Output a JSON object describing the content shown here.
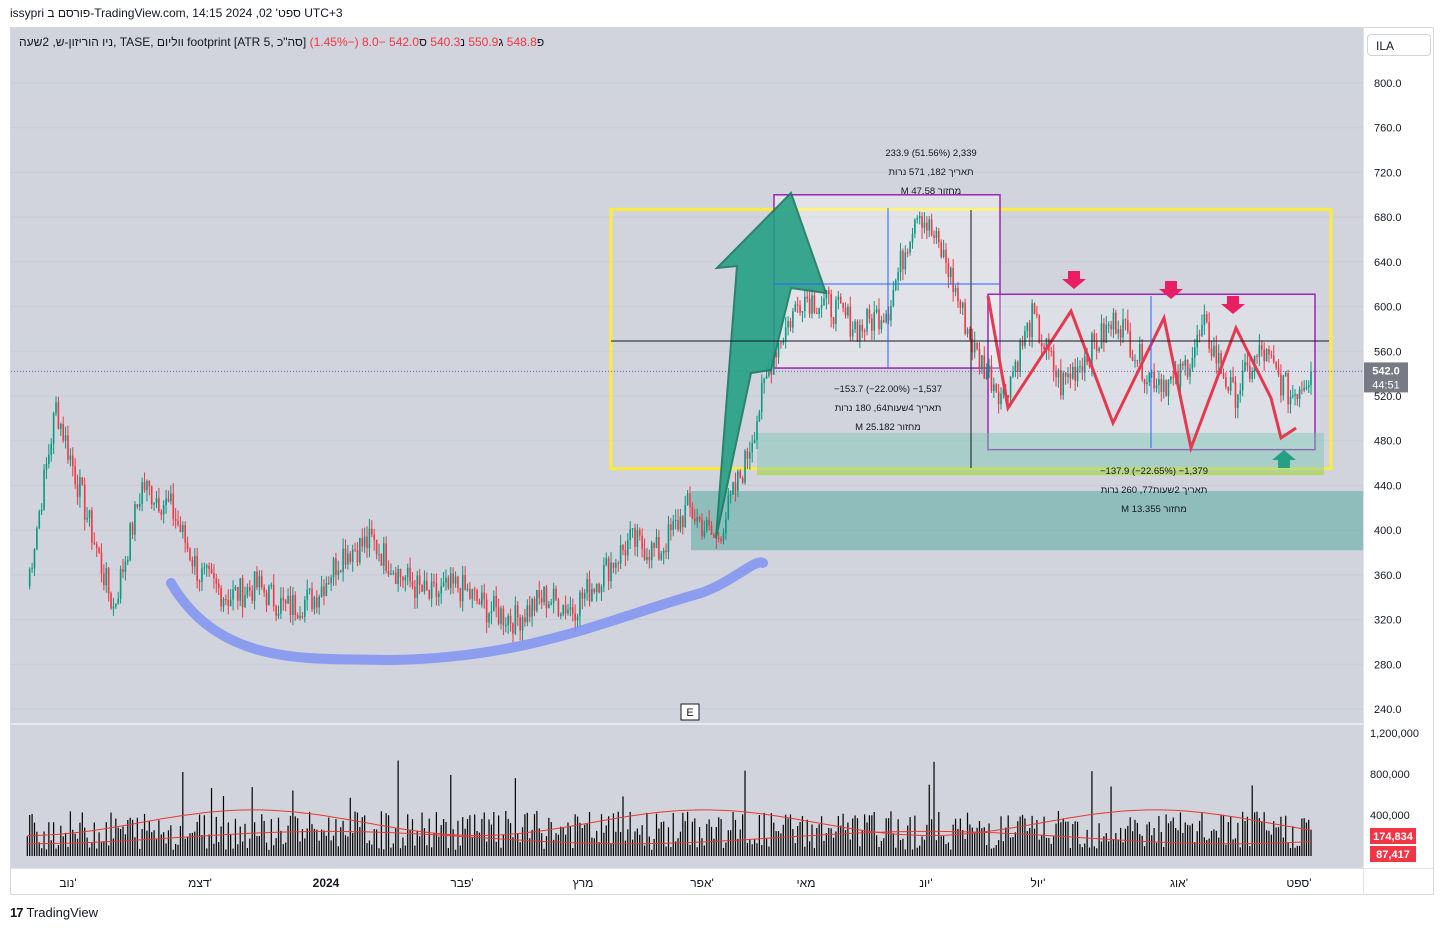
{
  "header": {
    "title": "issypri פורסם ב-TradingView.com, 14:15 2024 ,02 'ספט UTC+3"
  },
  "legend": {
    "symbol_text": "ניו הוריזון-ש, 2שעה, TASE, ווליום footprint [ATR 5, סה\"כ]",
    "open_label": "פ",
    "open": "548.8",
    "high_label": "ג",
    "high": "550.9",
    "low_label": "נ",
    "low": "540.3",
    "close_label": "ס",
    "close": "542.0",
    "change": "−8.0 (−1.45%)"
  },
  "symbol_search": "ILA",
  "price_axis": {
    "ticks": [
      "800.0",
      "760.0",
      "720.0",
      "680.0",
      "640.0",
      "600.0",
      "560.0",
      "520.0",
      "480.0",
      "440.0",
      "400.0",
      "360.0",
      "320.0",
      "280.0",
      "240.0"
    ],
    "current_price": "542.0",
    "countdown": "44:51"
  },
  "volume_axis": {
    "ticks": [
      "1,200,000",
      "800,000",
      "400,000"
    ],
    "badge_upper": "174,834",
    "badge_lower": "87,417"
  },
  "time_axis": {
    "labels": [
      "נוב'",
      "דצמ'",
      "2024",
      "פבר'",
      "מרץ",
      "אפר'",
      "מאי",
      "יונ'",
      "יול'",
      "אוג'",
      "ספט'"
    ]
  },
  "annotations": {
    "top_measure": [
      "233.9 (51.56%) 2,339",
      "תאריך 182, 571 נרות",
      "M מחזור 47.58"
    ],
    "mid_measure": [
      "−153.7 (−22.00%) −1,537",
      "תאריך 4שעות64, 180 נרות",
      "M מחזור 25.182"
    ],
    "low_measure": [
      "−137.9 (−22.65%) −1,379",
      "תאריך 2שעות77, 260 נרות",
      "M מחזור 13.355"
    ],
    "earnings_marker": "E"
  },
  "footer": {
    "brand": "TradingView"
  },
  "colors": {
    "up": "#089981",
    "down": "#f23645",
    "yellow_box": "#ffeb3b",
    "purple_box": "#9c27b0",
    "teal_zone": "#5cb8a6",
    "blue_curve": "#7b8ff5",
    "green_arrow": "#26a085"
  },
  "chart_data": {
    "type": "candlestick",
    "title": "ניו הוריזון-ש, 2שעה, TASE",
    "xlabel": "",
    "ylabel": "",
    "ylim": [
      230,
      830
    ],
    "x_range": [
      "2023-11",
      "2024-09"
    ],
    "series": [
      {
        "name": "price_close_approx",
        "x": [
          "2023-10-25",
          "2023-11-01",
          "2023-11-08",
          "2023-11-15",
          "2023-11-22",
          "2023-11-29",
          "2023-12-06",
          "2023-12-13",
          "2023-12-20",
          "2023-12-27",
          "2024-01-03",
          "2024-01-10",
          "2024-01-17",
          "2024-01-24",
          "2024-01-31",
          "2024-02-07",
          "2024-02-14",
          "2024-02-21",
          "2024-02-28",
          "2024-03-06",
          "2024-03-13",
          "2024-03-20",
          "2024-03-27",
          "2024-04-03",
          "2024-04-10",
          "2024-04-17",
          "2024-04-24",
          "2024-05-01",
          "2024-05-08",
          "2024-05-15",
          "2024-05-22",
          "2024-05-29",
          "2024-06-05",
          "2024-06-12",
          "2024-06-19",
          "2024-06-26",
          "2024-07-03",
          "2024-07-10",
          "2024-07-17",
          "2024-07-24",
          "2024-07-31",
          "2024-08-07",
          "2024-08-14",
          "2024-08-21",
          "2024-08-28",
          "2024-09-02"
        ],
        "values": [
          350,
          510,
          420,
          330,
          440,
          420,
          360,
          340,
          350,
          330,
          340,
          380,
          390,
          360,
          340,
          350,
          330,
          320,
          340,
          330,
          360,
          390,
          380,
          420,
          390,
          460,
          560,
          610,
          600,
          580,
          600,
          690,
          640,
          560,
          520,
          590,
          530,
          560,
          590,
          540,
          530,
          580,
          520,
          560,
          520,
          542
        ]
      }
    ],
    "volume": {
      "ylim": [
        0,
        1300000
      ],
      "description_values": [
        1200000,
        800000,
        400000
      ],
      "last": 174834,
      "average": 87417
    },
    "zones": [
      {
        "type": "yellow_box",
        "price_top": 687,
        "price_bottom": 455
      },
      {
        "type": "purple_box_top",
        "price_top": 700,
        "price_bottom": 545
      },
      {
        "type": "purple_box_range",
        "price_top": 611,
        "price_bottom": 472
      },
      {
        "type": "teal_zone_upper",
        "price_top": 487,
        "price_bottom": 451
      },
      {
        "type": "teal_zone_lower",
        "price_top": 435,
        "price_bottom": 382
      }
    ],
    "grid": true
  }
}
